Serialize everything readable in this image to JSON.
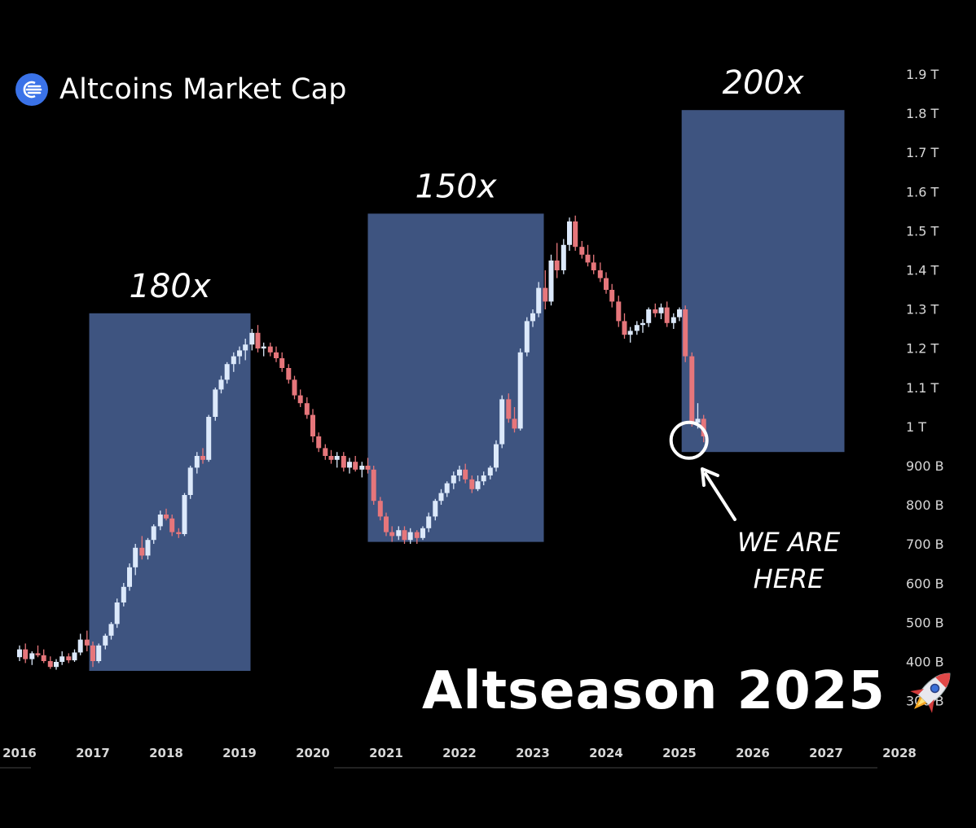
{
  "header": {
    "title": "Altcoins Market Cap",
    "logo_icon": "altcoins-logo-icon"
  },
  "headline": {
    "text": "Altseason 2025",
    "emoji": "rocket-icon"
  },
  "colors": {
    "background": "#000000",
    "up_candle": "#dce9fb",
    "down_candle": "#e6767b",
    "box_fill": "#3e5480",
    "axis_text": "#d8d8d8",
    "logo_blue": "#3a72e8"
  },
  "chart_data": {
    "type": "candlestick",
    "title": "Altcoins Market Cap",
    "x_axis": {
      "ticks": [
        "2016",
        "2017",
        "2018",
        "2019",
        "2020",
        "2021",
        "2022",
        "2023",
        "2024",
        "2025",
        "2026",
        "2027",
        "2028"
      ]
    },
    "y_axis": {
      "scale": "log",
      "ticks": [
        "1.9 T",
        "1.8 T",
        "1.7 T",
        "1.6 T",
        "1.5 T",
        "1.4 T",
        "1.3 T",
        "1.2 T",
        "1.1 T",
        "1 T",
        "900 B",
        "800 B",
        "700 B",
        "600 B",
        "500 B",
        "400 B",
        "300 B"
      ]
    },
    "series": [
      {
        "values_B": [
          [
            2016.0,
            410,
            440,
            400,
            430
          ],
          [
            2016.08,
            430,
            445,
            395,
            405
          ],
          [
            2016.17,
            405,
            425,
            390,
            420
          ],
          [
            2016.25,
            420,
            440,
            410,
            415
          ],
          [
            2016.33,
            415,
            430,
            395,
            400
          ],
          [
            2016.42,
            400,
            412,
            380,
            385
          ],
          [
            2016.5,
            385,
            405,
            378,
            398
          ],
          [
            2016.58,
            398,
            425,
            390,
            412
          ],
          [
            2016.67,
            412,
            420,
            395,
            402
          ],
          [
            2016.75,
            402,
            430,
            398,
            422
          ],
          [
            2016.83,
            422,
            470,
            415,
            455
          ],
          [
            2016.92,
            455,
            478,
            425,
            440
          ],
          [
            2017.0,
            440,
            450,
            385,
            400
          ],
          [
            2017.08,
            400,
            445,
            395,
            440
          ],
          [
            2017.17,
            440,
            470,
            430,
            465
          ],
          [
            2017.25,
            465,
            500,
            455,
            495
          ],
          [
            2017.33,
            495,
            560,
            485,
            550
          ],
          [
            2017.42,
            550,
            600,
            540,
            590
          ],
          [
            2017.5,
            590,
            650,
            580,
            640
          ],
          [
            2017.58,
            640,
            700,
            620,
            690
          ],
          [
            2017.67,
            690,
            720,
            660,
            670
          ],
          [
            2017.75,
            670,
            715,
            660,
            710
          ],
          [
            2017.83,
            710,
            750,
            700,
            745
          ],
          [
            2017.92,
            745,
            785,
            735,
            775
          ],
          [
            2018.0,
            775,
            790,
            760,
            765
          ],
          [
            2018.08,
            765,
            775,
            720,
            730
          ],
          [
            2018.17,
            730,
            740,
            715,
            725
          ],
          [
            2018.25,
            725,
            830,
            720,
            825
          ],
          [
            2018.33,
            825,
            900,
            815,
            895
          ],
          [
            2018.42,
            895,
            935,
            880,
            925
          ],
          [
            2018.5,
            925,
            945,
            905,
            915
          ],
          [
            2018.58,
            915,
            1030,
            910,
            1025
          ],
          [
            2018.67,
            1025,
            1100,
            1015,
            1095
          ],
          [
            2018.75,
            1095,
            1130,
            1085,
            1120
          ],
          [
            2018.83,
            1120,
            1165,
            1110,
            1160
          ],
          [
            2018.92,
            1160,
            1190,
            1140,
            1180
          ],
          [
            2019.0,
            1180,
            1205,
            1160,
            1195
          ],
          [
            2019.08,
            1195,
            1225,
            1170,
            1210
          ],
          [
            2019.17,
            1210,
            1250,
            1195,
            1240
          ],
          [
            2019.25,
            1240,
            1260,
            1190,
            1200
          ],
          [
            2019.33,
            1200,
            1215,
            1180,
            1205
          ],
          [
            2019.42,
            1205,
            1215,
            1180,
            1190
          ],
          [
            2019.5,
            1190,
            1205,
            1165,
            1175
          ],
          [
            2019.58,
            1175,
            1190,
            1140,
            1150
          ],
          [
            2019.67,
            1150,
            1160,
            1110,
            1120
          ],
          [
            2019.75,
            1120,
            1130,
            1070,
            1080
          ],
          [
            2019.83,
            1080,
            1095,
            1050,
            1060
          ],
          [
            2019.92,
            1060,
            1075,
            1020,
            1030
          ],
          [
            2020.0,
            1030,
            1045,
            960,
            975
          ],
          [
            2020.08,
            975,
            985,
            935,
            945
          ],
          [
            2020.17,
            945,
            955,
            915,
            925
          ],
          [
            2020.25,
            925,
            940,
            905,
            915
          ],
          [
            2020.33,
            915,
            935,
            895,
            925
          ],
          [
            2020.42,
            925,
            935,
            885,
            895
          ],
          [
            2020.5,
            895,
            920,
            880,
            910
          ],
          [
            2020.58,
            910,
            925,
            885,
            890
          ],
          [
            2020.67,
            890,
            910,
            870,
            900
          ],
          [
            2020.75,
            900,
            920,
            880,
            890
          ],
          [
            2020.83,
            890,
            900,
            800,
            810
          ],
          [
            2020.92,
            810,
            820,
            760,
            770
          ],
          [
            2021.0,
            770,
            780,
            720,
            730
          ],
          [
            2021.08,
            730,
            745,
            705,
            720
          ],
          [
            2021.17,
            720,
            745,
            710,
            735
          ],
          [
            2021.25,
            735,
            745,
            700,
            710
          ],
          [
            2021.33,
            710,
            740,
            700,
            730
          ],
          [
            2021.42,
            730,
            735,
            700,
            715
          ],
          [
            2021.5,
            715,
            745,
            710,
            740
          ],
          [
            2021.58,
            740,
            780,
            730,
            770
          ],
          [
            2021.67,
            770,
            815,
            760,
            810
          ],
          [
            2021.75,
            810,
            840,
            800,
            830
          ],
          [
            2021.83,
            830,
            860,
            820,
            855
          ],
          [
            2021.92,
            855,
            885,
            840,
            875
          ],
          [
            2022.0,
            875,
            900,
            860,
            890
          ],
          [
            2022.08,
            890,
            905,
            855,
            865
          ],
          [
            2022.17,
            865,
            875,
            830,
            840
          ],
          [
            2022.25,
            840,
            875,
            835,
            860
          ],
          [
            2022.33,
            860,
            885,
            850,
            875
          ],
          [
            2022.42,
            875,
            900,
            865,
            895
          ],
          [
            2022.5,
            895,
            965,
            885,
            955
          ],
          [
            2022.58,
            955,
            1080,
            945,
            1070
          ],
          [
            2022.67,
            1070,
            1085,
            1010,
            1020
          ],
          [
            2022.75,
            1020,
            1050,
            985,
            995
          ],
          [
            2022.83,
            995,
            1200,
            990,
            1190
          ],
          [
            2022.92,
            1190,
            1280,
            1180,
            1270
          ],
          [
            2023.0,
            1270,
            1300,
            1255,
            1290
          ],
          [
            2023.08,
            1290,
            1370,
            1280,
            1355
          ],
          [
            2023.17,
            1355,
            1400,
            1300,
            1320
          ],
          [
            2023.25,
            1320,
            1440,
            1310,
            1425
          ],
          [
            2023.33,
            1425,
            1470,
            1380,
            1400
          ],
          [
            2023.42,
            1400,
            1480,
            1390,
            1465
          ],
          [
            2023.5,
            1465,
            1535,
            1450,
            1525
          ],
          [
            2023.58,
            1525,
            1540,
            1450,
            1460
          ],
          [
            2023.67,
            1460,
            1475,
            1430,
            1440
          ],
          [
            2023.75,
            1440,
            1465,
            1410,
            1420
          ],
          [
            2023.83,
            1420,
            1440,
            1390,
            1400
          ],
          [
            2023.92,
            1400,
            1420,
            1370,
            1380
          ],
          [
            2024.0,
            1380,
            1395,
            1340,
            1350
          ],
          [
            2024.08,
            1350,
            1365,
            1305,
            1320
          ],
          [
            2024.17,
            1320,
            1335,
            1255,
            1270
          ],
          [
            2024.25,
            1270,
            1290,
            1225,
            1235
          ],
          [
            2024.33,
            1235,
            1255,
            1215,
            1245
          ],
          [
            2024.42,
            1245,
            1270,
            1235,
            1260
          ],
          [
            2024.5,
            1260,
            1275,
            1240,
            1265
          ],
          [
            2024.58,
            1265,
            1305,
            1255,
            1300
          ],
          [
            2024.67,
            1300,
            1315,
            1280,
            1290
          ],
          [
            2024.75,
            1290,
            1315,
            1275,
            1305
          ],
          [
            2024.83,
            1305,
            1320,
            1255,
            1265
          ],
          [
            2024.92,
            1265,
            1290,
            1250,
            1280
          ],
          [
            2025.0,
            1280,
            1305,
            1270,
            1300
          ],
          [
            2025.08,
            1300,
            1310,
            1165,
            1180
          ],
          [
            2025.17,
            1180,
            1190,
            1000,
            1010
          ],
          [
            2025.25,
            1010,
            1060,
            995,
            1020
          ],
          [
            2025.33,
            1020,
            1030,
            960,
            975
          ]
        ]
      }
    ],
    "highlight_boxes": [
      {
        "label": "180x",
        "x_start": 2016.95,
        "x_end": 2019.15,
        "y_top_B": 1290,
        "y_bottom_B": 375
      },
      {
        "label": "150x",
        "x_start": 2020.75,
        "x_end": 2023.15,
        "y_top_B": 1545,
        "y_bottom_B": 705
      },
      {
        "label": "200x",
        "x_start": 2025.03,
        "x_end": 2027.25,
        "y_top_B": 1810,
        "y_bottom_B": 935
      }
    ],
    "annotations": [
      {
        "type": "circle",
        "x": 2025.13,
        "y_B": 965
      },
      {
        "type": "arrow-text",
        "text_line1": "WE ARE",
        "text_line2": "HERE",
        "x": 2026.5,
        "y_B": 690
      }
    ],
    "grid": false
  }
}
